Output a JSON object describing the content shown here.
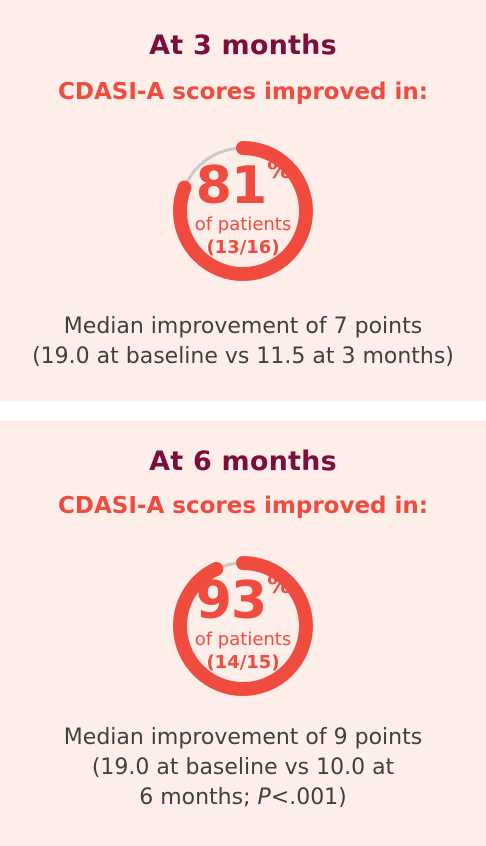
{
  "colors": {
    "card_background": "#fdeeea",
    "title": "#7a0e3d",
    "accent": "#ef4c3f",
    "ring_track": "#c9c9c9",
    "body_text": "#404040"
  },
  "panels": [
    {
      "title": "At 3 months",
      "subtitle": "CDASI-A scores improved in:",
      "percent": "81",
      "percent_value": 81,
      "percent_sign": "%",
      "of_patients": "of patients",
      "fraction": "(13/16)",
      "median_line1": "Median improvement of 7 points",
      "median_line2": "(19.0 at baseline vs 11.5 at 3 months)"
    },
    {
      "title": "At 6 months",
      "subtitle": "CDASI-A scores improved in:",
      "percent": "93",
      "percent_value": 93,
      "percent_sign": "%",
      "of_patients": "of patients",
      "fraction": "(14/15)",
      "median_line1": "Median improvement of 9 points",
      "median_line2": "(19.0 at baseline vs 10.0 at",
      "median_line3_pre": "6 months; ",
      "median_line3_p": "P",
      "median_line3_post": "<.001)"
    }
  ]
}
